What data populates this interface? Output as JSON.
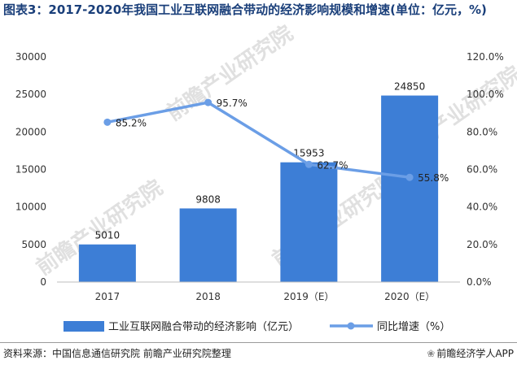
{
  "title": "图表3：2017-2020年我国工业互联网融合带动的经济影响规模和增速(单位：亿元，%)",
  "source": "资料来源：中国信息通信研究院 前瞻产业研究院整理",
  "brand": "前瞻经济学人APP",
  "watermark": "前瞻产业研究院",
  "colors": {
    "bar": "#3d7ed6",
    "line": "#6b9ee6",
    "title": "#1a3f7a"
  },
  "chart_data": {
    "type": "bar",
    "categories": [
      "2017",
      "2018",
      "2019（E）",
      "2020（E）"
    ],
    "series": [
      {
        "name": "工业互联网融合带动的经济影响（亿元）",
        "type": "bar",
        "axis": "left",
        "values": [
          5010,
          9808,
          15953,
          24850
        ],
        "labels": [
          "5010",
          "9808",
          "15953",
          "24850"
        ]
      },
      {
        "name": "同比增速（%）",
        "type": "line",
        "axis": "right",
        "values": [
          85.2,
          95.7,
          62.7,
          55.8
        ],
        "labels": [
          "85.2%",
          "95.7%",
          "62.7%",
          "55.8%"
        ]
      }
    ],
    "y_left": {
      "ylim": [
        0,
        30000
      ],
      "ticks": [
        "0",
        "5000",
        "10000",
        "15000",
        "20000",
        "25000",
        "30000"
      ]
    },
    "y_right": {
      "ylim": [
        0,
        120
      ],
      "ticks": [
        "0.0%",
        "20.0%",
        "40.0%",
        "60.0%",
        "80.0%",
        "100.0%",
        "120.0%"
      ]
    },
    "grid": false,
    "legend": "bottom"
  }
}
